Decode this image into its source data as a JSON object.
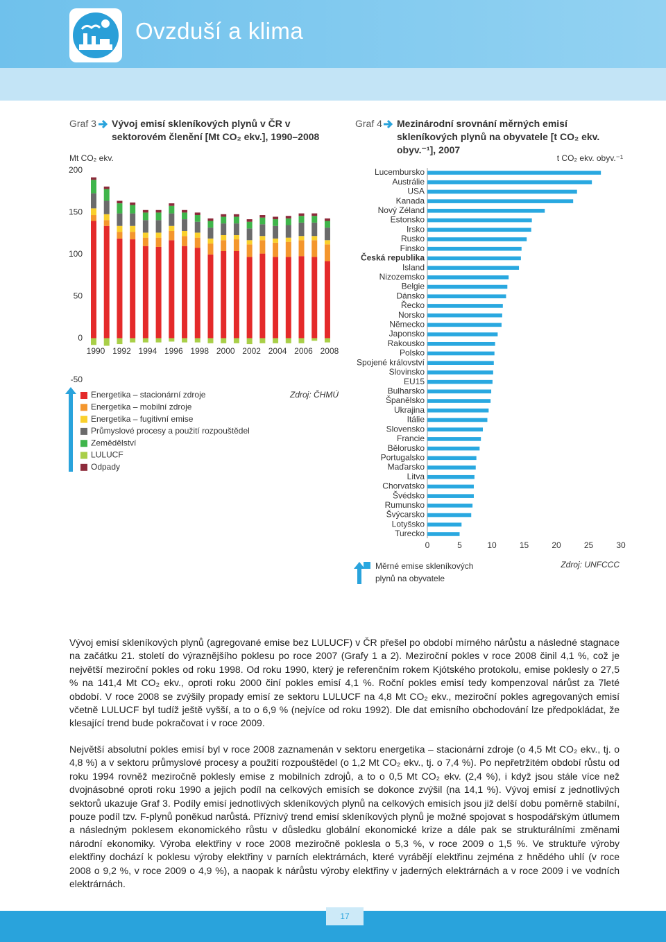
{
  "header": {
    "title": "Ovzduší a klima"
  },
  "chart_data": [
    {
      "type": "bar",
      "stacked": true,
      "label": "Graf 3",
      "title": "Vývoj emisí skleníkových plynů v ČR v sektorovém členění [Mt CO₂ ekv.], 1990–2008",
      "y_label": "Mt CO₂ ekv.",
      "source": "Zdroj: ČHMÚ",
      "categories": [
        "1990",
        null,
        "1992",
        null,
        "1994",
        null,
        "1996",
        null,
        "1998",
        null,
        "2000",
        null,
        "2002",
        null,
        "2004",
        null,
        "2006",
        null,
        "2008"
      ],
      "series": [
        {
          "name": "Energetika – stacionární zdroje",
          "color": "#e42a2a",
          "values": [
            140,
            134,
            119,
            118,
            110,
            109,
            117,
            110,
            108,
            100,
            104,
            104,
            97,
            101,
            97,
            97,
            98,
            97,
            92
          ]
        },
        {
          "name": "Energetika – mobilní zdroje",
          "color": "#f4962d",
          "values": [
            7,
            7,
            8,
            9,
            10,
            11,
            11,
            12,
            12,
            13,
            13,
            14,
            15,
            16,
            17,
            18,
            19,
            20,
            20
          ]
        },
        {
          "name": "Energetika – fugitivní emise",
          "color": "#fad02c",
          "values": [
            8,
            7,
            7,
            7,
            6,
            6,
            6,
            6,
            6,
            6,
            6,
            5,
            5,
            5,
            5,
            5,
            5,
            5,
            5
          ]
        },
        {
          "name": "Průmyslové procesy a použití rozpouštědel",
          "color": "#6b6b6b",
          "values": [
            18,
            16,
            15,
            15,
            15,
            15,
            15,
            14,
            13,
            13,
            14,
            14,
            14,
            14,
            15,
            15,
            16,
            16,
            15
          ]
        },
        {
          "name": "Zemědělství",
          "color": "#3fb54b",
          "values": [
            16,
            14,
            12,
            10,
            9,
            9,
            9,
            8,
            8,
            8,
            8,
            8,
            8,
            8,
            8,
            8,
            8,
            8,
            8
          ]
        },
        {
          "name": "LULUCF",
          "color": "#a9cf48",
          "values": [
            -8,
            -9,
            -7,
            -5,
            -5,
            -5,
            -4,
            -5,
            -5,
            -6,
            -6,
            -6,
            -7,
            -6,
            -6,
            -6,
            -6,
            -3,
            -5
          ]
        },
        {
          "name": "Odpady",
          "color": "#8d2b3b",
          "values": [
            3,
            3,
            3,
            3,
            3,
            3,
            3,
            3,
            3,
            3,
            3,
            3,
            3,
            3,
            3,
            3,
            3,
            3,
            3
          ]
        }
      ],
      "ylim": [
        -50,
        200
      ],
      "yticks": [
        -50,
        0,
        50,
        100,
        150,
        200
      ],
      "grid": false
    },
    {
      "type": "barh",
      "label": "Graf 4",
      "title": "Mezinárodní srovnání měrných emisí skleníkových plynů na obyvatele [t CO₂ ekv. obyv.⁻¹], 2007",
      "x_label": "t CO₂ ekv. obyv.⁻¹",
      "source": "Zdroj: UNFCCC",
      "categories": [
        "Lucembursko",
        "Austrálie",
        "USA",
        "Kanada",
        "Nový Zéland",
        "Estonsko",
        "Irsko",
        "Rusko",
        "Finsko",
        "Česká republika",
        "Island",
        "Nizozemsko",
        "Belgie",
        "Dánsko",
        "Řecko",
        "Norsko",
        "Německo",
        "Japonsko",
        "Rakousko",
        "Polsko",
        "Spojené království",
        "Slovinsko",
        "EU15",
        "Bulharsko",
        "Španělsko",
        "Ukrajina",
        "Itálie",
        "Slovensko",
        "Francie",
        "Bělorusko",
        "Portugalsko",
        "Maďarsko",
        "Litva",
        "Chorvatsko",
        "Švédsko",
        "Rumunsko",
        "Švýcarsko",
        "Lotyšsko",
        "Turecko"
      ],
      "series": [
        {
          "name": "Měrné emise skleníkových plynů na obyvatele",
          "color": "#29a8e0",
          "values": [
            26.9,
            25.5,
            23.2,
            22.6,
            18.2,
            16.2,
            16.1,
            15.4,
            14.6,
            14.5,
            14.2,
            12.6,
            12.4,
            12.2,
            11.7,
            11.6,
            11.5,
            10.9,
            10.5,
            10.4,
            10.3,
            10.2,
            10.1,
            9.9,
            9.8,
            9.5,
            9.3,
            8.6,
            8.3,
            8.1,
            7.6,
            7.5,
            7.3,
            7.2,
            7.2,
            7.0,
            6.8,
            5.3,
            5.0
          ]
        }
      ],
      "xlim": [
        0,
        30
      ],
      "xticks": [
        0,
        5,
        10,
        15,
        20,
        25,
        30
      ],
      "grid": false
    }
  ],
  "text": {
    "paragraphs": [
      "Vývoj emisí skleníkových plynů (agregované emise bez LULUCF) v ČR přešel po období mírného nárůstu a následné stagnace na začátku 21. století do výraznějšího poklesu po roce 2007 (Grafy 1 a 2). Meziroční pokles v roce 2008 činil 4,1 %, což je největší meziroční pokles od roku 1998. Od roku 1990, který je referenčním rokem Kjótského protokolu, emise poklesly o 27,5 % na 141,4 Mt CO₂ ekv., oproti roku 2000 činí pokles emisí 4,1 %. Roční pokles emisí tedy kompenzoval nárůst za 7leté období. V roce 2008 se zvýšily propady emisí ze sektoru LULUCF na 4,8 Mt CO₂ ekv., meziroční pokles agregovaných emisí včetně LULUCF byl tudíž ještě vyšší, a to o 6,9 % (nejvíce od roku 1992). Dle dat emisního obchodování lze předpokládat, že klesající trend bude pokračovat i v roce 2009.",
      "Největší absolutní pokles emisí byl v roce 2008 zaznamenán v sektoru energetika – stacionární zdroje (o 4,5 Mt CO₂ ekv., tj. o 4,8 %) a v sektoru průmyslové procesy a použití rozpouštědel (o 1,2 Mt CO₂ ekv., tj. o 7,4 %). Po nepřetržitém období růstu od roku 1994 rovněž meziročně poklesly emise z mobilních zdrojů, a to o 0,5 Mt CO₂ ekv. (2,4 %), i když jsou stále více než dvojnásobné oproti roku 1990 a jejich podíl na celkových emisích se dokonce zvýšil (na 14,1 %). Vývoj emisí z jednotlivých sektorů ukazuje Graf 3. Podíly emisí jednotlivých skleníkových plynů na celkových emisích jsou již delší dobu poměrně stabilní, pouze podíl tzv. F-plynů poněkud narůstá. Příznivý trend emisí skleníkových plynů je možné spojovat s hospodářským útlumem a následným poklesem ekonomického růstu v důsledku globální ekonomické krize a dále pak se strukturálními změnami národní ekonomiky. Výroba elektřiny v roce 2008 meziročně poklesla o 5,3 %, v roce 2009 o 1,5 %. Ve struktuře výroby elektřiny dochází k poklesu výroby elektřiny v parních elektrárnách, které vyrábějí elektřinu zejména z hnědého uhlí (v roce 2008 o 9,2 %, v roce 2009 o 4,9 %), a naopak k nárůstu výroby elektřiny v jaderných elektrárnách a v roce 2009 i ve vodních elektrárnách."
    ]
  },
  "footer": {
    "page_number": "17"
  }
}
